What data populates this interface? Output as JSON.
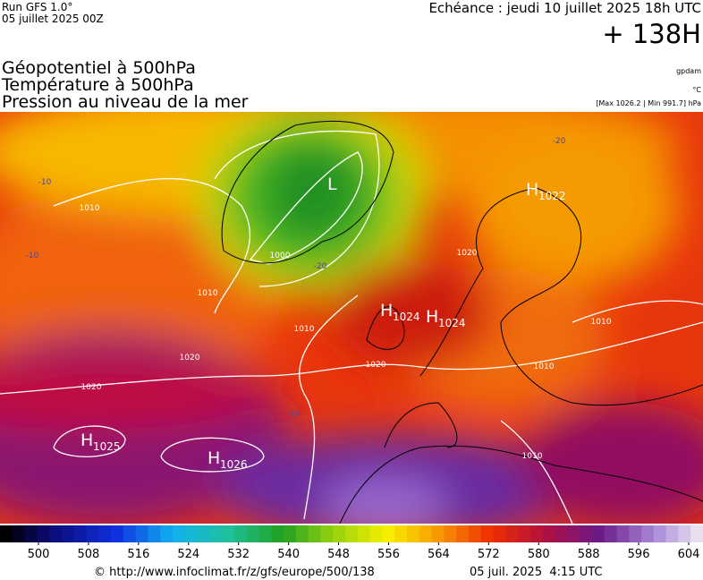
{
  "header": {
    "run": "Run GFS 1.0°",
    "date": "05 juillet 2025 00Z",
    "echeance": "Echéance : jeudi 10 juillet 2025 18h UTC",
    "lead": "+ 138H"
  },
  "legend": {
    "fields": [
      "Géopotentiel à 500hPa",
      "Température à 500hPa",
      "Pression au niveau de la mer"
    ],
    "units": [
      "gpdam",
      "°C",
      "[Max 1026.2 | Min 991.7] hPa"
    ]
  },
  "map": {
    "centers": [
      {
        "symbol": "H",
        "value": 1022
      },
      {
        "symbol": "L"
      },
      {
        "symbol": "H",
        "value": 1024
      },
      {
        "symbol": "H",
        "value": 1024
      },
      {
        "symbol": "H",
        "value": 1025
      },
      {
        "symbol": "H",
        "value": 1026
      }
    ],
    "isoline_labels": [
      1010,
      1000,
      1010,
      1010,
      1020,
      1020,
      1020,
      1020,
      1010,
      1010,
      1010,
      -20,
      -20,
      -10,
      -10,
      -10
    ]
  },
  "colorbar": {
    "ticks": [
      500,
      508,
      516,
      524,
      532,
      540,
      548,
      556,
      564,
      572,
      580,
      588,
      596,
      604
    ]
  },
  "footer": {
    "url": "© http://www.infoclimat.fr/z/gfs/europe/500/138",
    "timestamp": "05 juil. 2025  4:15 UTC"
  }
}
